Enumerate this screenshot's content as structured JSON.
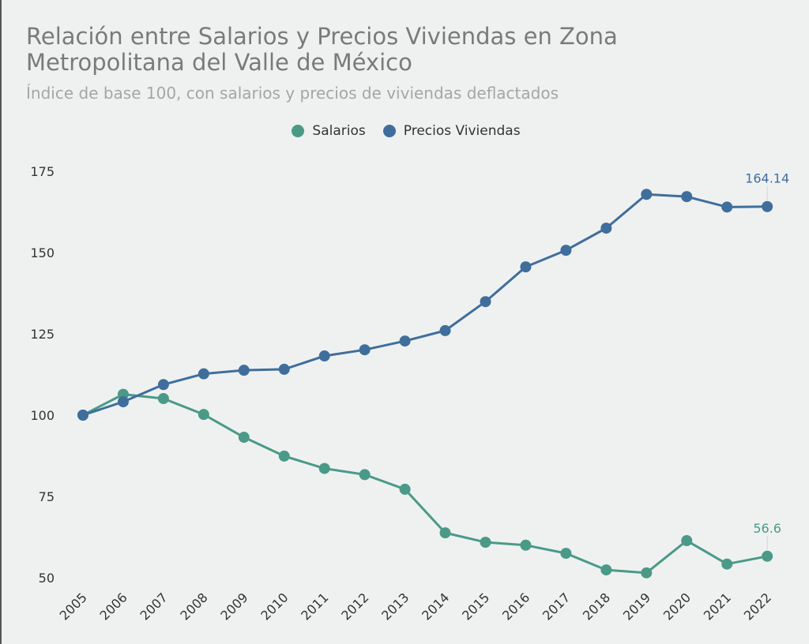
{
  "chart_data": {
    "type": "line",
    "title": "Relación entre Salarios y Precios Viviendas en Zona Metropolitana del Valle de México",
    "subtitle": "Índice de base 100, con salarios y precios de viviendas deflactados",
    "xlabel": "",
    "ylabel": "",
    "x": [
      "2005",
      "2006",
      "2007",
      "2008",
      "2009",
      "2010",
      "2011",
      "2012",
      "2013",
      "2014",
      "2015",
      "2016",
      "2017",
      "2018",
      "2019",
      "2020",
      "2021",
      "2022"
    ],
    "yticks": [
      50,
      75,
      100,
      125,
      150,
      175
    ],
    "ylim": [
      50,
      175
    ],
    "grid": false,
    "legend_position": "top-center",
    "series": [
      {
        "name": "Salarios",
        "color": "#4a9a87",
        "values": [
          100,
          106.4,
          105.1,
          100.2,
          93.2,
          87.4,
          83.6,
          81.7,
          77.2,
          63.8,
          60.9,
          60.0,
          57.5,
          52.4,
          51.5,
          61.4,
          54.2,
          56.6
        ],
        "end_label": "56.6"
      },
      {
        "name": "Precios Viviendas",
        "color": "#3f6e9c",
        "values": [
          100,
          104.1,
          109.4,
          112.7,
          113.8,
          114.1,
          118.2,
          120.1,
          122.8,
          126.0,
          134.9,
          145.6,
          150.7,
          157.5,
          167.9,
          167.2,
          164.0,
          164.14
        ],
        "end_label": "164.14"
      }
    ]
  }
}
